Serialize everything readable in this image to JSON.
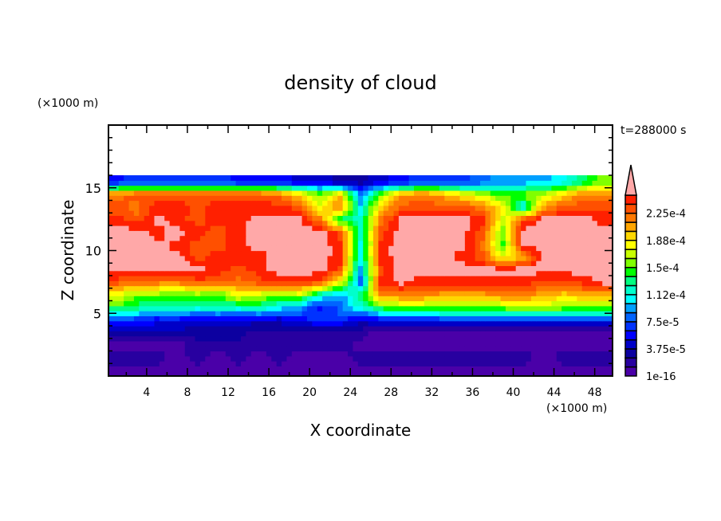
{
  "chart_data": {
    "type": "heatmap",
    "title": "density of cloud",
    "xlabel": "X coordinate",
    "ylabel": "Z coordinate",
    "x_unit": "(×1000 m)",
    "y_unit": "(×1000 m)",
    "time_label": "t=288000 s",
    "xlim": [
      0.25,
      49.75
    ],
    "ylim": [
      0,
      20
    ],
    "xticks": [
      4,
      8,
      12,
      16,
      20,
      24,
      28,
      32,
      36,
      40,
      44,
      48
    ],
    "yticks": [
      5,
      10,
      15
    ],
    "x_minor_step": 2,
    "y_minor_step": 1,
    "colorbar": {
      "levels_step": 1.25e-05,
      "labels": [
        "1e-16",
        "3.75e-5",
        "7.5e-5",
        "1.12e-4",
        "1.5e-4",
        "1.88e-4",
        "2.25e-4"
      ],
      "label_every": 3,
      "colors": [
        "#4a00a8",
        "#2800a0",
        "#0c00a0",
        "#0000c8",
        "#0000ff",
        "#0032ff",
        "#0064ff",
        "#00a0ff",
        "#00ffff",
        "#00ffcc",
        "#00ff80",
        "#00ff00",
        "#80ff00",
        "#c8ff00",
        "#ffff00",
        "#ffd700",
        "#ffa500",
        "#ff7800",
        "#ff5000",
        "#ff2000",
        "#ff2828"
      ],
      "overflow_color": "#ffa8a8",
      "note": "index 20 = above 2.5e-4"
    },
    "grid": {
      "x": [
        1,
        3,
        5,
        7,
        9,
        11,
        13,
        15,
        17,
        19,
        21,
        23,
        25,
        27,
        29,
        31,
        33,
        35,
        37,
        39,
        41,
        43,
        45,
        47,
        49
      ],
      "z": [
        0.5,
        1.5,
        2.5,
        3.5,
        4.5,
        5.5,
        6.5,
        7.5,
        8.5,
        9.5,
        10.5,
        11.5,
        12.5,
        13.5,
        14.5,
        15.5
      ],
      "z_top": 16,
      "level_index": [
        [
          0,
          0,
          0,
          0,
          0,
          0,
          0,
          0,
          0,
          0,
          0,
          0,
          0,
          0,
          0,
          0,
          0,
          0,
          0,
          0,
          0,
          0,
          0,
          0,
          0
        ],
        [
          1,
          1,
          1,
          0,
          1,
          0,
          1,
          0,
          1,
          0,
          0,
          0,
          1,
          1,
          1,
          1,
          1,
          1,
          1,
          1,
          1,
          0,
          1,
          1,
          1
        ],
        [
          0,
          0,
          0,
          0,
          1,
          1,
          1,
          1,
          1,
          1,
          1,
          1,
          0,
          0,
          0,
          0,
          0,
          0,
          0,
          0,
          0,
          0,
          0,
          0,
          0
        ],
        [
          2,
          2,
          2,
          2,
          2,
          2,
          2,
          1,
          1,
          1,
          1,
          1,
          1,
          0,
          0,
          0,
          0,
          0,
          0,
          0,
          0,
          0,
          0,
          0,
          0
        ],
        [
          5,
          5,
          4,
          4,
          3,
          3,
          3,
          3,
          3,
          4,
          5,
          5,
          3,
          4,
          4,
          4,
          5,
          5,
          5,
          5,
          5,
          5,
          5,
          5,
          5
        ],
        [
          11,
          10,
          9,
          10,
          9,
          10,
          9,
          10,
          8,
          7,
          4,
          6,
          9,
          11,
          12,
          12,
          12,
          12,
          12,
          12,
          13,
          13,
          12,
          12,
          12
        ],
        [
          14,
          12,
          12,
          11,
          12,
          11,
          14,
          13,
          12,
          13,
          9,
          7,
          10,
          17,
          17,
          17,
          16,
          16,
          16,
          17,
          17,
          16,
          15,
          16,
          16
        ],
        [
          18,
          17,
          17,
          17,
          18,
          18,
          17,
          18,
          19,
          19,
          18,
          14,
          6,
          19,
          20,
          19,
          19,
          19,
          19,
          19,
          19,
          18,
          18,
          19,
          20
        ],
        [
          20,
          20,
          20,
          20,
          20,
          19,
          18,
          19,
          20,
          20,
          20,
          18,
          7,
          18,
          20,
          20,
          20,
          20,
          20,
          20,
          20,
          20,
          20,
          20,
          20
        ],
        [
          20,
          20,
          20,
          20,
          18,
          19,
          19,
          19,
          20,
          20,
          20,
          19,
          8,
          19,
          20,
          20,
          20,
          19,
          18,
          14,
          16,
          20,
          20,
          20,
          20
        ],
        [
          20,
          20,
          20,
          19,
          18,
          18,
          19,
          20,
          20,
          20,
          20,
          19,
          8,
          19,
          20,
          20,
          20,
          20,
          17,
          11,
          20,
          20,
          20,
          20,
          20
        ],
        [
          20,
          20,
          19,
          20,
          19,
          18,
          19,
          20,
          20,
          20,
          20,
          18,
          9,
          18,
          20,
          20,
          20,
          20,
          18,
          12,
          20,
          20,
          20,
          20,
          20
        ],
        [
          19,
          18,
          20,
          19,
          18,
          19,
          19,
          20,
          20,
          20,
          17,
          10,
          9,
          17,
          20,
          20,
          20,
          20,
          19,
          13,
          18,
          20,
          20,
          20,
          19
        ],
        [
          18,
          17,
          19,
          19,
          18,
          19,
          19,
          19,
          19,
          18,
          14,
          17,
          8,
          15,
          18,
          18,
          18,
          18,
          17,
          14,
          8,
          16,
          18,
          18,
          18
        ],
        [
          17,
          18,
          18,
          18,
          18,
          18,
          18,
          18,
          17,
          15,
          12,
          15,
          6,
          12,
          16,
          17,
          16,
          14,
          13,
          11,
          12,
          13,
          15,
          17,
          17
        ],
        [
          4,
          5,
          5,
          5,
          5,
          5,
          4,
          4,
          4,
          3,
          3,
          2,
          2,
          3,
          4,
          5,
          5,
          5,
          6,
          7,
          7,
          7,
          8,
          10,
          12
        ]
      ]
    }
  }
}
